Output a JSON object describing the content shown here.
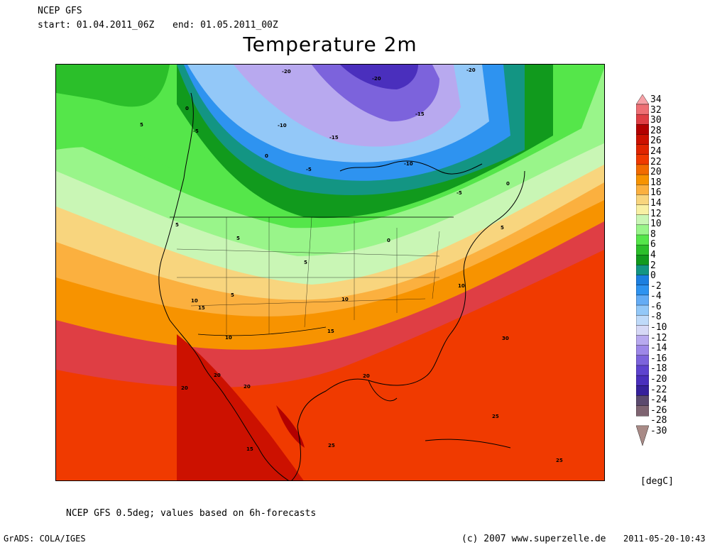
{
  "header": {
    "model": "NCEP GFS",
    "start": "start: 01.04.2011_06Z",
    "end": "end: 01.05.2011_00Z"
  },
  "title": "Temperature 2m",
  "colorbar": {
    "labels": [
      "34",
      "32",
      "30",
      "28",
      "26",
      "24",
      "22",
      "20",
      "18",
      "16",
      "14",
      "12",
      "10",
      "8",
      "6",
      "4",
      "2",
      "0",
      "-2",
      "-4",
      "-6",
      "-8",
      "-10",
      "-12",
      "-14",
      "-16",
      "-18",
      "-20",
      "-22",
      "-24",
      "-26",
      "-28",
      "-30"
    ],
    "colors": [
      "#f7a1a6",
      "#ee6f74",
      "#df3e44",
      "#b30000",
      "#cc1100",
      "#e02500",
      "#f03a00",
      "#f26b00",
      "#f79300",
      "#fbb03f",
      "#f8d57e",
      "#f8f0a4",
      "#c9f6b5",
      "#99f58a",
      "#55e64a",
      "#2bbf2a",
      "#119a1d",
      "#139583",
      "#1c7fe0",
      "#2e93f0",
      "#64acf5",
      "#93c8f8",
      "#bfdaf9",
      "#d6d8f6",
      "#b8a9ef",
      "#9d87e8",
      "#7c63dc",
      "#5e43cf",
      "#4a2fbd",
      "#36219b",
      "#5b4a6e",
      "#7e6471",
      "#a88a86"
    ],
    "units": "[degC]"
  },
  "map": {
    "contour_labels": [
      "-20",
      "-20",
      "-20",
      "-15",
      "-15",
      "-10",
      "-10",
      "-5",
      "-5",
      "-5",
      "0",
      "0",
      "0",
      "0",
      "5",
      "5",
      "5",
      "5",
      "5",
      "5",
      "10",
      "10",
      "10",
      "10",
      "15",
      "15",
      "20",
      "20",
      "20",
      "25",
      "25",
      "25",
      "30",
      "15",
      "20"
    ]
  },
  "footer": {
    "note": "NCEP GFS 0.5deg; values based on 6h-forecasts",
    "software": "GrADS: COLA/IGES",
    "copyright": "(c) 2007 www.superzelle.de",
    "timestamp": "2011-05-20-10:43"
  }
}
